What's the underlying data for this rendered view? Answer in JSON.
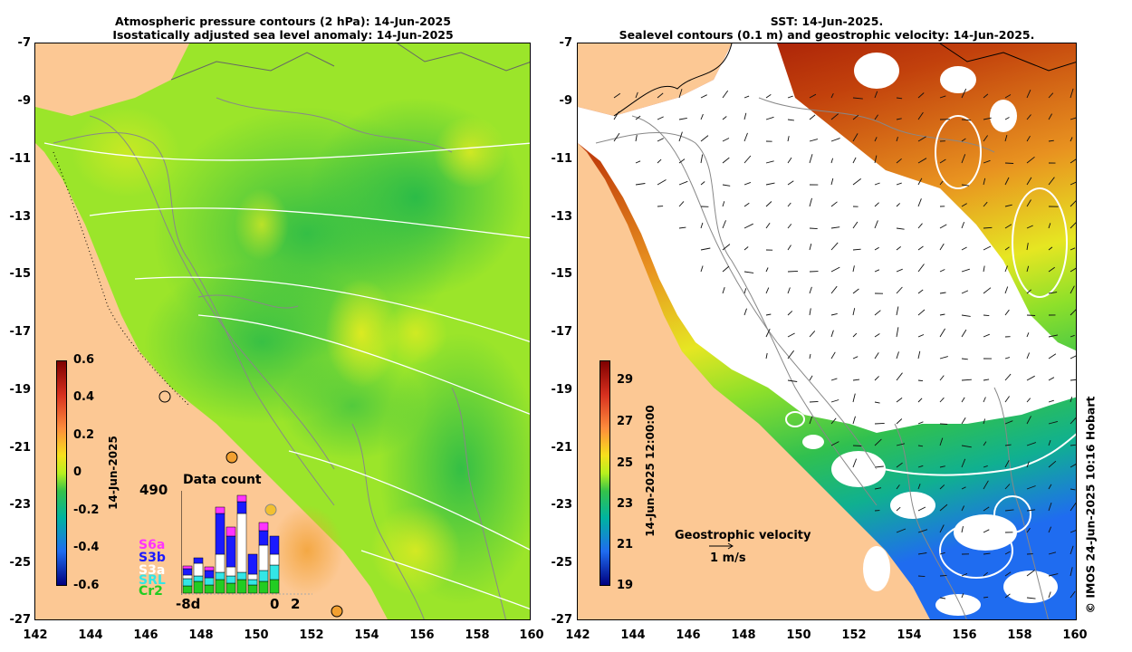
{
  "left_panel": {
    "title_line1": "Atmospheric pressure contours (2 hPa): 14-Jun-2025",
    "title_line2": "Isostatically adjusted sea level anomaly: 14-Jun-2025",
    "colorbar": {
      "ticks": [
        "0.6",
        "0.4",
        "0.2",
        "0",
        "-0.2",
        "-0.4",
        "-0.6"
      ],
      "label": "14-Jun-2025",
      "colors": [
        "#7f0000",
        "#d7301f",
        "#fd8d3c",
        "#f7e01c",
        "#b8f01e",
        "#35c24a",
        "#00b3a0",
        "#1f6cf0",
        "#00007f"
      ]
    },
    "inset": {
      "title": "Data count",
      "max": "490",
      "legend": [
        {
          "name": "S6a",
          "color": "#ff33ff"
        },
        {
          "name": "S3b",
          "color": "#1a1aff"
        },
        {
          "name": "S3a",
          "color": "#ffffff"
        },
        {
          "name": "SRL",
          "color": "#33e6e6"
        },
        {
          "name": "Cr2",
          "color": "#22cc22"
        }
      ],
      "x_left": "-8d",
      "x_zero": "0",
      "x_right": "2"
    }
  },
  "right_panel": {
    "title_line1": "SST: 14-Jun-2025.",
    "title_line2": "Sealevel contours (0.1 m) and geostrophic velocity: 14-Jun-2025.",
    "colorbar": {
      "ticks": [
        "29",
        "27",
        "25",
        "23",
        "21",
        "19"
      ],
      "label": "14-Jun-2025 12:00:00",
      "colors": [
        "#7f0000",
        "#d7301f",
        "#fd8d3c",
        "#f7e01c",
        "#b8f01e",
        "#35c24a",
        "#00b3a0",
        "#1f6cf0",
        "#00007f"
      ]
    },
    "velocity_legend": {
      "title": "Geostrophic velocity",
      "scale": "1 m/s"
    }
  },
  "axes": {
    "y_ticks": [
      "-7",
      "-9",
      "-11",
      "-13",
      "-15",
      "-17",
      "-19",
      "-21",
      "-23",
      "-25",
      "-27"
    ],
    "x_ticks": [
      "142",
      "144",
      "146",
      "148",
      "150",
      "152",
      "154",
      "156",
      "158",
      "160"
    ]
  },
  "credit": "© IMOS 24-Jun-2025 10:16 Hobart",
  "colors": {
    "land": "#fcc894",
    "sla_base": "#9be52a",
    "sla_low": "#3ec64a",
    "sst_cloud": "#ffffff"
  }
}
